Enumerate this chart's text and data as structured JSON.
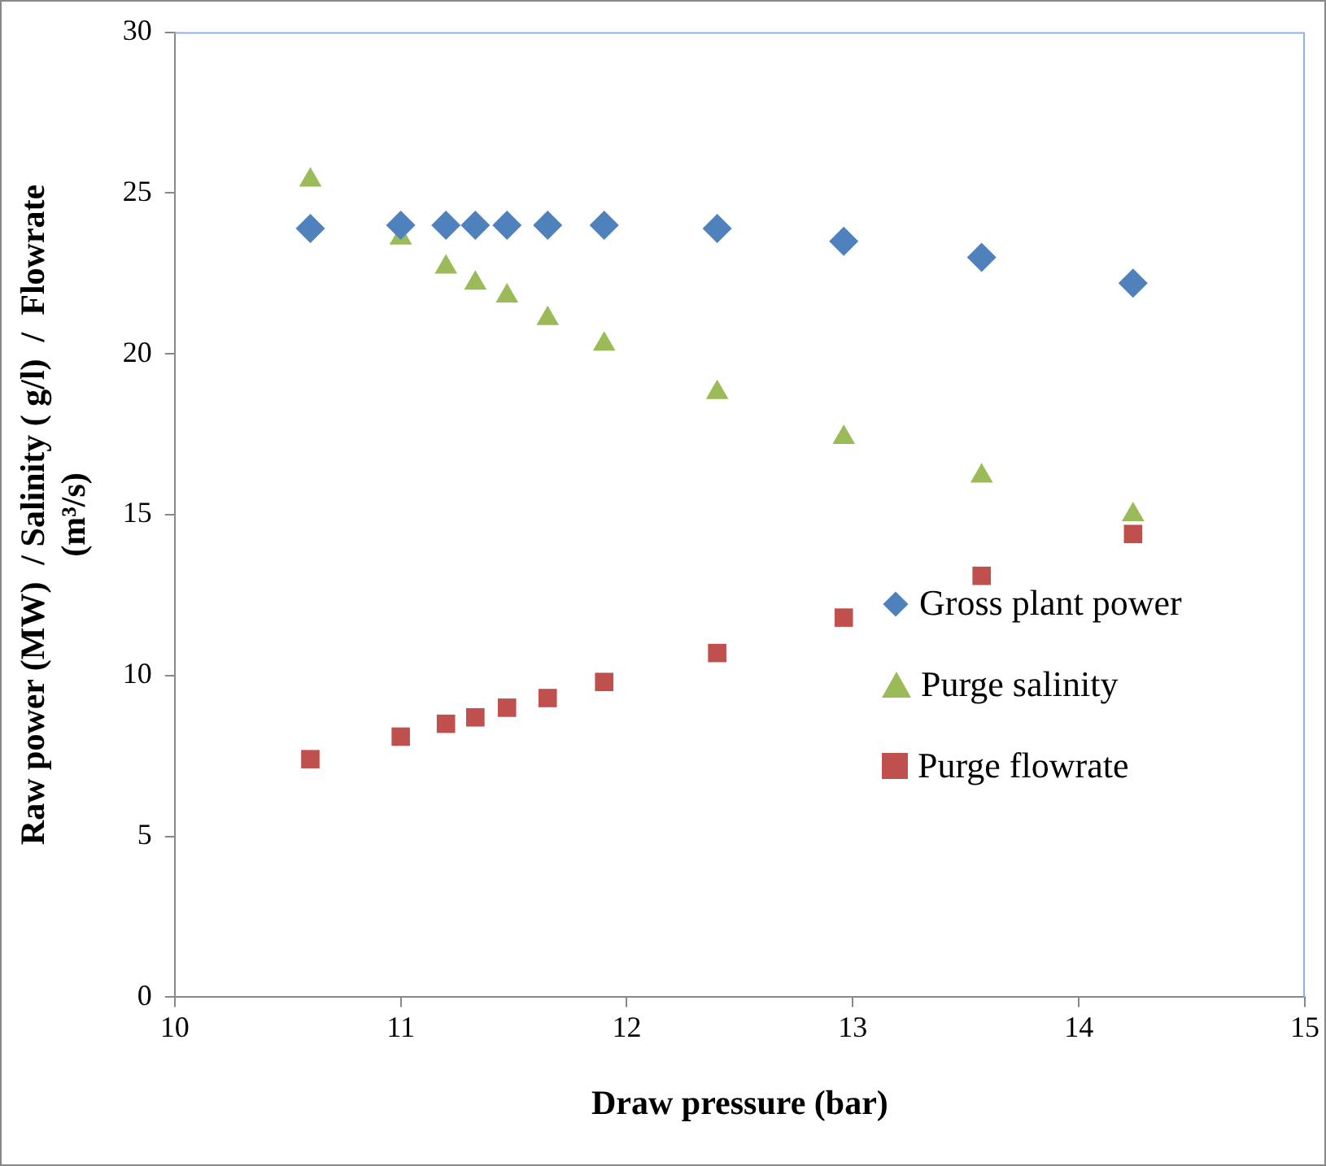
{
  "chart_data": {
    "type": "scatter",
    "xlabel": "Draw pressure (bar)",
    "ylabel": "Raw power (MW)  / Salinity ( g/l)  /  Flowrate\n(m³/s)",
    "x": [
      10.6,
      11.0,
      11.2,
      11.33,
      11.47,
      11.65,
      11.9,
      12.4,
      12.96,
      13.57,
      14.24
    ],
    "series": [
      {
        "name": "Gross plant power",
        "color": "#4f81bd",
        "marker": "diamond",
        "values": [
          23.9,
          24.0,
          24.0,
          24.0,
          24.0,
          24.0,
          24.0,
          23.9,
          23.5,
          23.0,
          22.2
        ]
      },
      {
        "name": "Purge salinity",
        "color": "#9bbb59",
        "marker": "triangle",
        "values": [
          25.4,
          23.6,
          22.7,
          22.2,
          21.8,
          21.1,
          20.3,
          18.8,
          17.4,
          16.2,
          15.0
        ]
      },
      {
        "name": "Purge flowrate",
        "color": "#c0504d",
        "marker": "square",
        "values": [
          7.4,
          8.1,
          8.5,
          8.7,
          9.0,
          9.3,
          9.8,
          10.7,
          11.8,
          13.1,
          14.4
        ]
      }
    ],
    "xlim": [
      10,
      15
    ],
    "xticks": [
      10,
      11,
      12,
      13,
      14,
      15
    ],
    "ylim": [
      0,
      30
    ],
    "yticks": [
      0,
      5,
      10,
      15,
      20,
      25,
      30
    ],
    "grid": false,
    "legend": "right"
  }
}
